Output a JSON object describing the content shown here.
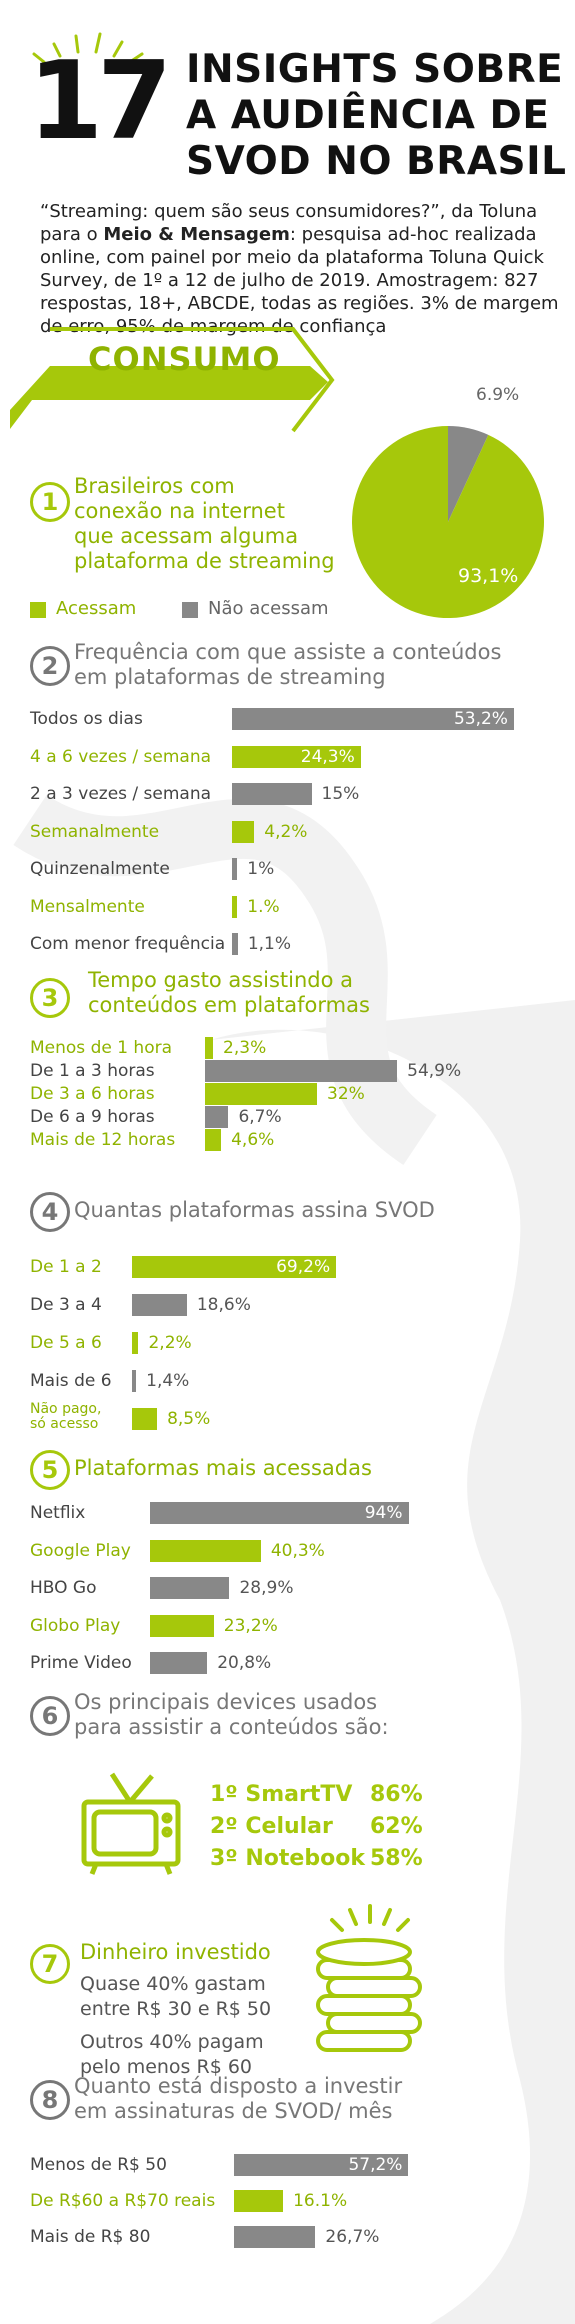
{
  "header": {
    "big_number": "17",
    "title_line1": "INSIGHTS SOBRE",
    "title_line2": "A AUDIÊNCIA DE",
    "title_line3": "SVOD NO BRASIL"
  },
  "intro": {
    "part1": "“Streaming: quem são seus consumidores?”, da Toluna para o ",
    "bold": "Meio & Mensagem",
    "part2": ": pesquisa ad-hoc realizada online, com painel por meio da plataforma Toluna Quick Survey, de 1º a 12 de julho de 2019. Amostragem: 827 respostas, 18+, ABCDE, todas as regiões. 3% de margem de erro, 95% de margem de confiança"
  },
  "section_banner": "CONSUMO",
  "colors": {
    "green": "#a6c80b",
    "green_text": "#8fb300",
    "gray": "#888888"
  },
  "q1": {
    "num": "1",
    "question": [
      "Brasileiros com",
      "conexão na internet",
      "que acessam alguma",
      "plataforma de streaming"
    ],
    "legend": [
      "Acessam",
      "Não acessam"
    ]
  },
  "q2": {
    "num": "2",
    "question": [
      "Frequência com que assiste a conteúdos",
      "em plataformas de streaming"
    ]
  },
  "q3": {
    "num": "3",
    "question": [
      "Tempo gasto assistindo a",
      "conteúdos em plataformas"
    ]
  },
  "q4": {
    "num": "4",
    "question": [
      "Quantas plataformas assina SVOD"
    ]
  },
  "q5": {
    "num": "5",
    "question": [
      "Plataformas mais acessadas"
    ]
  },
  "q6": {
    "num": "6",
    "question": [
      "Os principais devices usados",
      "para assistir a conteúdos são:"
    ],
    "devices": [
      {
        "label": "1º SmartTV",
        "value": "86%"
      },
      {
        "label": "2º Celular",
        "value": "62%"
      },
      {
        "label": "3º Notebook",
        "value": "58%"
      }
    ]
  },
  "q7": {
    "num": "7",
    "question": [
      "Dinheiro investido"
    ],
    "lines": [
      "Quase 40% gastam",
      "entre R$ 30 e R$ 50",
      "Outros 40% pagam",
      "pelo menos R$ 60"
    ]
  },
  "q8": {
    "num": "8",
    "question": [
      "Quanto está disposto a investir",
      "em assinaturas de SVOD/ mês"
    ]
  },
  "chart_data": [
    {
      "type": "pie",
      "categories": [
        "Acessam",
        "Não acessam"
      ],
      "values": [
        93.1,
        6.9
      ],
      "labels": [
        "93,1%",
        "6.9%"
      ]
    },
    {
      "type": "bar",
      "categories": [
        "Todos os dias",
        "4 a 6 vezes / semana",
        "2 a 3 vezes / semana",
        "Semanalmente",
        "Quinzenalmente",
        "Mensalmente",
        "Com menor frequência"
      ],
      "values": [
        53.2,
        24.3,
        15,
        4.2,
        1,
        1,
        1.1
      ],
      "labels": [
        "53,2%",
        "24,3%",
        "15%",
        "4,2%",
        "1%",
        "1.%",
        "1,1%"
      ]
    },
    {
      "type": "bar",
      "categories": [
        "Menos de 1 hora",
        "De 1 a 3 horas",
        "De 3 a 6 horas",
        "De 6 a 9 horas",
        "Mais de 12 horas"
      ],
      "values": [
        2.3,
        54.9,
        32,
        6.7,
        4.6
      ],
      "labels": [
        "2,3%",
        "54,9%",
        "32%",
        "6,7%",
        "4,6%"
      ]
    },
    {
      "type": "bar",
      "categories": [
        "De 1 a 2",
        "De 3 a 4",
        "De 5 a 6",
        "Mais de 6",
        "Não pago, só acesso"
      ],
      "values": [
        69.2,
        18.6,
        2.2,
        1.4,
        8.5
      ],
      "labels": [
        "69,2%",
        "18,6%",
        "2,2%",
        "1,4%",
        "8,5%"
      ]
    },
    {
      "type": "bar",
      "categories": [
        "Netflix",
        "Google Play",
        "HBO Go",
        "Globo Play",
        "Prime Video"
      ],
      "values": [
        94,
        40.3,
        28.9,
        23.2,
        20.8
      ],
      "labels": [
        "94%",
        "40,3%",
        "28,9%",
        "23,2%",
        "20,8%"
      ]
    },
    {
      "type": "bar",
      "categories": [
        "Menos de R$ 50",
        "De R$60 a R$70 reais",
        "Mais de R$ 80"
      ],
      "values": [
        57.2,
        16.1,
        26.7
      ],
      "labels": [
        "57,2%",
        "16.1%",
        "26,7%"
      ]
    }
  ]
}
